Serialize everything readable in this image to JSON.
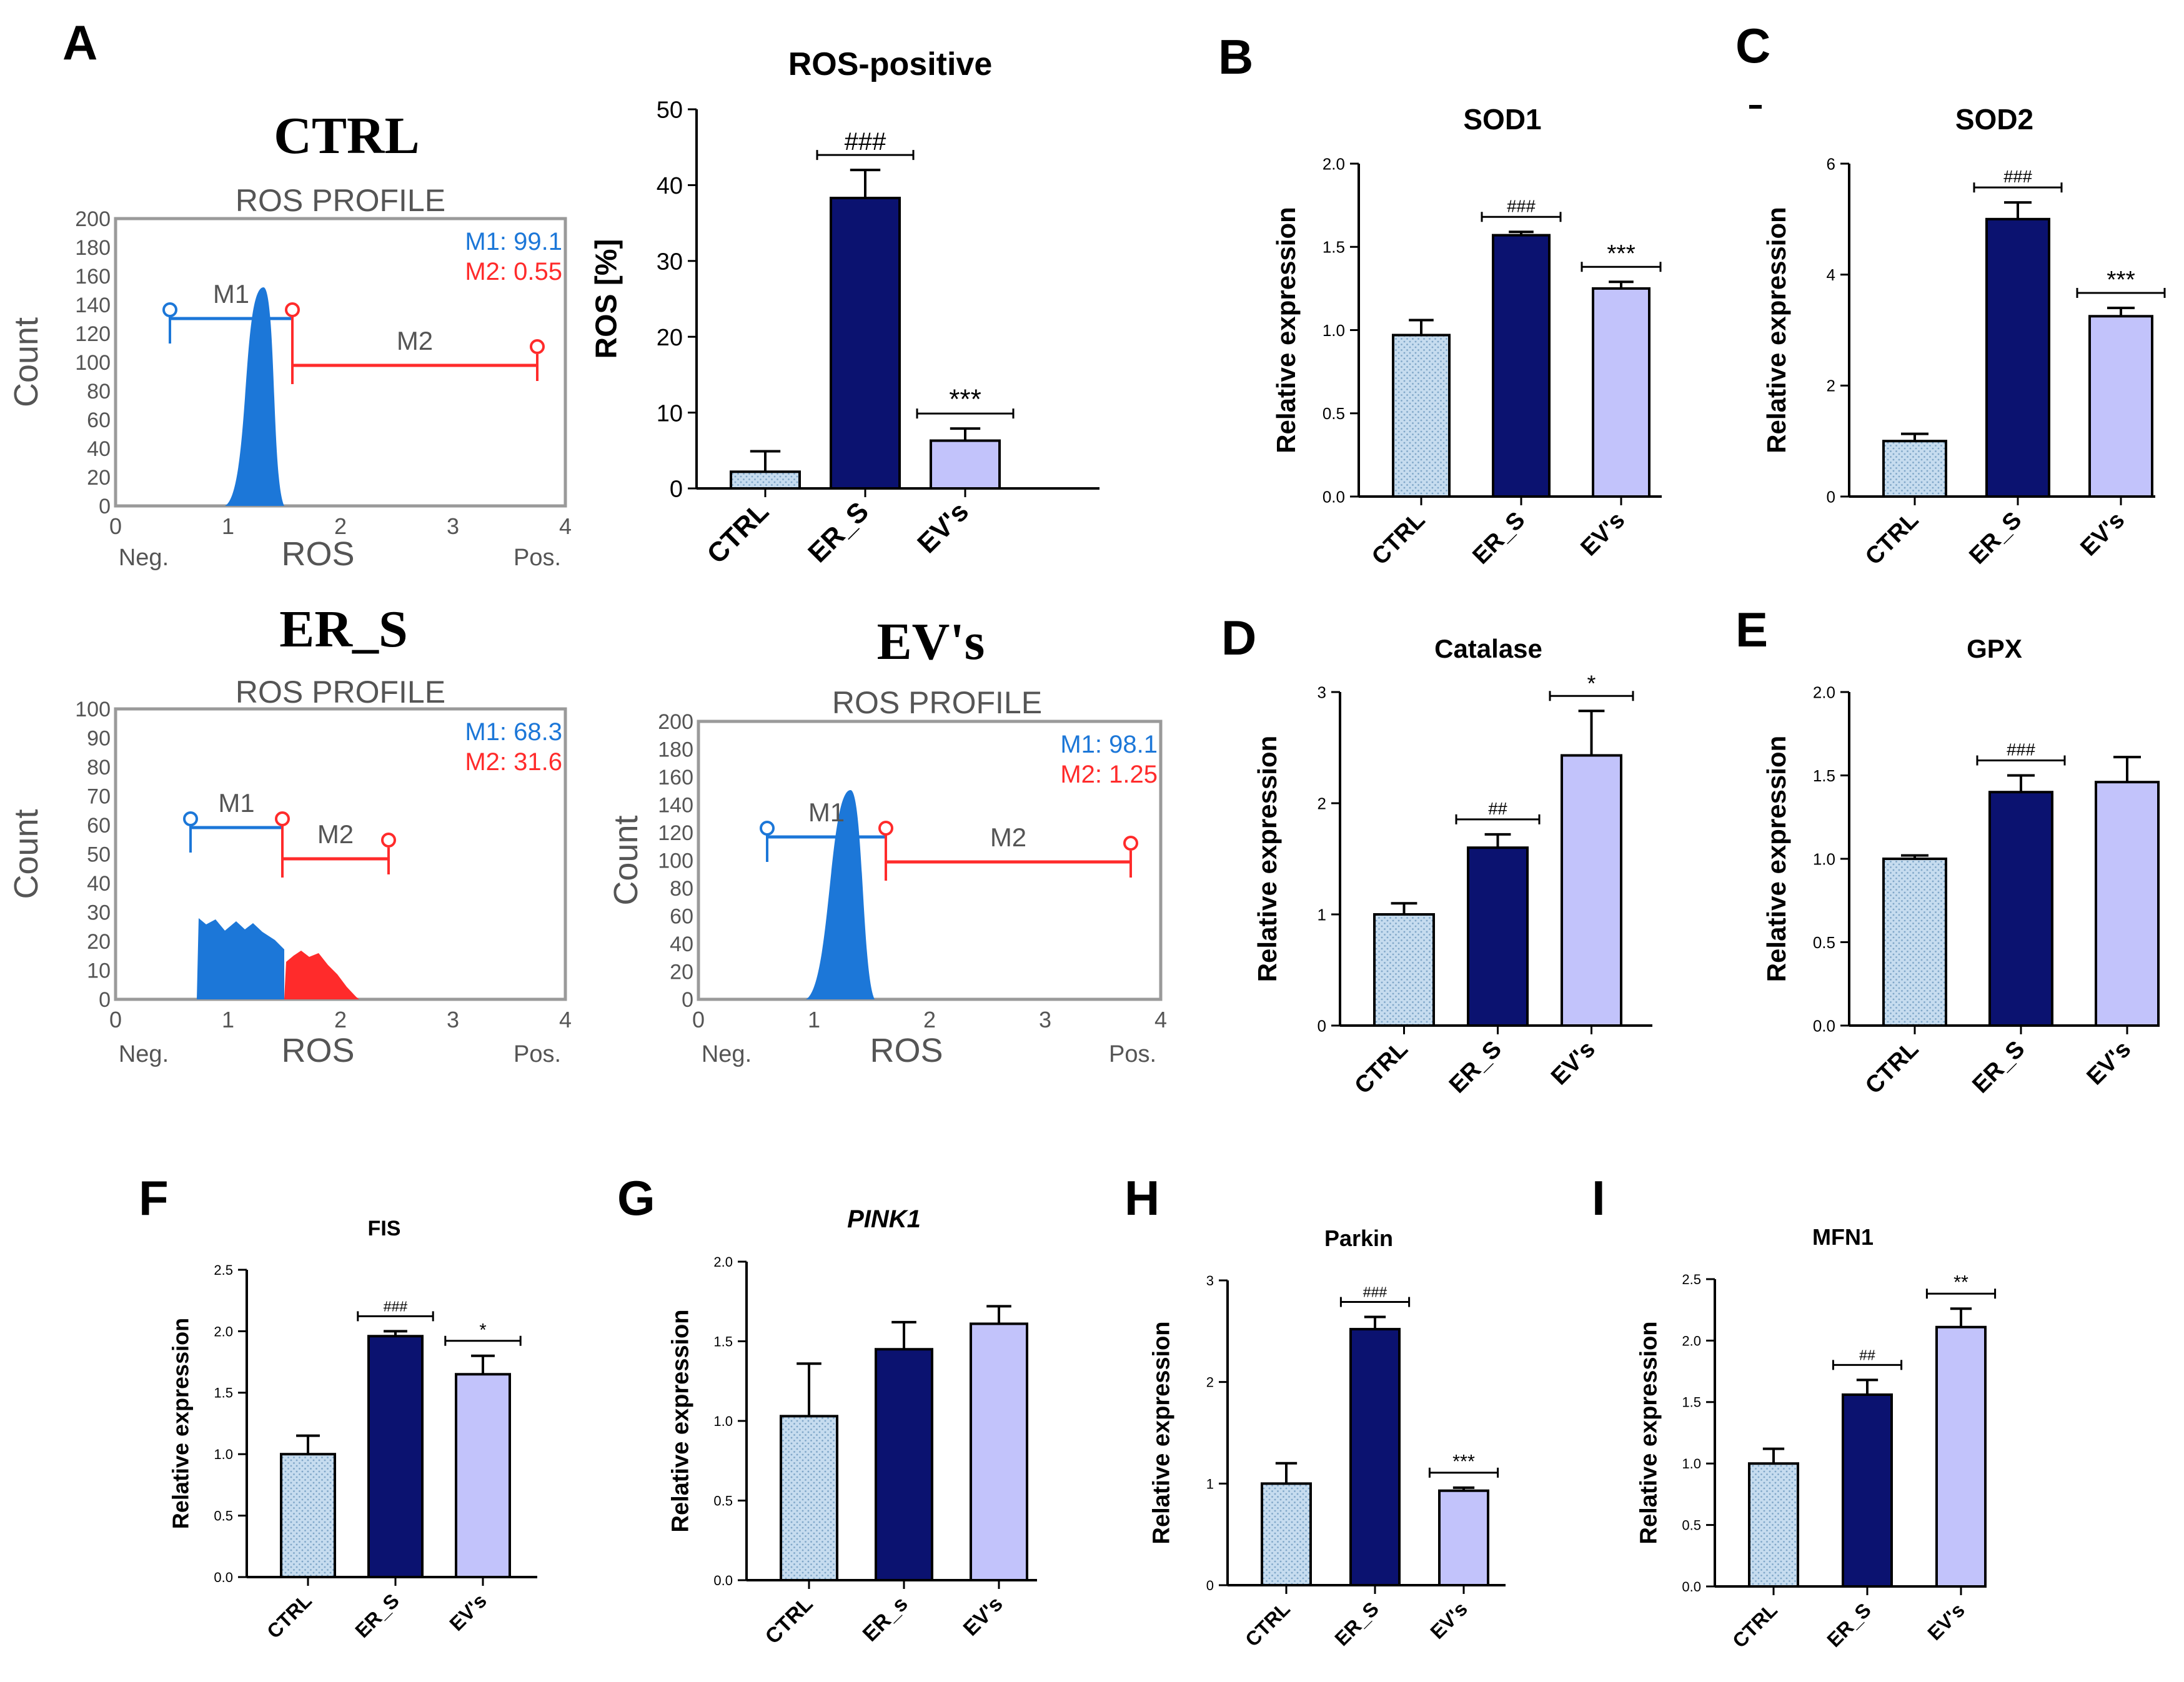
{
  "colors": {
    "ctrl": "#c6dcef",
    "ctrl_dot": "#7fa6c8",
    "er": "#0b1270",
    "ev": "#c2c3fb",
    "blue": "#1c77d8",
    "red": "#ff2b2b",
    "axis": "#000000",
    "frame": "#9a9a9a",
    "gray": "#555555"
  },
  "flow": {
    "xticks": [
      "0",
      "1",
      "2",
      "3",
      "4"
    ],
    "xlabel": "ROS",
    "neg": "Neg.",
    "pos": "Pos.",
    "ylabel": "Count",
    "subtitle": "ROS PROFILE",
    "m1": "M1",
    "m2": "M2",
    "panels": [
      {
        "title": "CTRL",
        "yticks": [
          "0",
          "20",
          "40",
          "60",
          "80",
          "100",
          "120",
          "140",
          "160",
          "180",
          "200"
        ],
        "m1_text": "M1: 99.1",
        "m2_text": "M2: 0.55"
      },
      {
        "title": "ER_S",
        "yticks": [
          "0",
          "10",
          "20",
          "30",
          "40",
          "50",
          "60",
          "70",
          "80",
          "90",
          "100"
        ],
        "m1_text": "M1: 68.3",
        "m2_text": "M2: 31.6"
      },
      {
        "title": "EV's",
        "yticks": [
          "0",
          "20",
          "40",
          "60",
          "80",
          "100",
          "120",
          "140",
          "160",
          "180",
          "200"
        ],
        "m1_text": "M1: 98.1",
        "m2_text": "M2: 1.25"
      }
    ]
  },
  "chart_data": [
    {
      "id": "ros",
      "panel": "A",
      "type": "bar",
      "title": "ROS-positive",
      "ylabel": "ROS [%]",
      "categories": [
        "CTRL",
        "ER_S",
        "EV's"
      ],
      "values": [
        2.2,
        38.3,
        6.3
      ],
      "errors": [
        2.7,
        3.7,
        1.6
      ],
      "ylim": [
        0,
        50
      ],
      "yticks": [
        "0",
        "10",
        "20",
        "30",
        "40",
        "50"
      ],
      "annotations": [
        {
          "bar": 1,
          "text": "###"
        },
        {
          "bar": 2,
          "text": "***"
        }
      ]
    },
    {
      "id": "sod1",
      "panel": "B",
      "type": "bar",
      "title": "SOD1",
      "ylabel": "Relative expression",
      "categories": [
        "CTRL",
        "ER_S",
        "EV's"
      ],
      "values": [
        0.97,
        1.57,
        1.25
      ],
      "errors": [
        0.09,
        0.02,
        0.04
      ],
      "ylim": [
        0,
        2.0
      ],
      "yticks": [
        "0.0",
        "0.5",
        "1.0",
        "1.5",
        "2.0"
      ],
      "annotations": [
        {
          "bar": 1,
          "text": "###"
        },
        {
          "bar": 2,
          "text": "***"
        }
      ]
    },
    {
      "id": "sod2",
      "panel": "C",
      "type": "bar",
      "title": "SOD2",
      "ylabel": "Relative expression",
      "categories": [
        "CTRL",
        "ER_S",
        "EV's"
      ],
      "values": [
        1.0,
        5.0,
        3.25
      ],
      "errors": [
        0.13,
        0.3,
        0.15
      ],
      "ylim": [
        0,
        6
      ],
      "yticks": [
        "0",
        "2",
        "4",
        "6"
      ],
      "annotations": [
        {
          "bar": 1,
          "text": "###"
        },
        {
          "bar": 2,
          "text": "***"
        }
      ]
    },
    {
      "id": "cat",
      "panel": "D",
      "type": "bar",
      "title": "Catalase",
      "ylabel": "Relative expression",
      "categories": [
        "CTRL",
        "ER_S",
        "EV's"
      ],
      "values": [
        1.0,
        1.6,
        2.43
      ],
      "errors": [
        0.1,
        0.12,
        0.4
      ],
      "ylim": [
        0,
        3
      ],
      "yticks": [
        "0",
        "1",
        "2",
        "3"
      ],
      "annotations": [
        {
          "bar": 1,
          "text": "##"
        },
        {
          "bar": 2,
          "text": "*"
        }
      ]
    },
    {
      "id": "gpx",
      "panel": "E",
      "type": "bar",
      "title": "GPX",
      "ylabel": "Relative expression",
      "categories": [
        "CTRL",
        "ER_S",
        "EV's"
      ],
      "values": [
        1.0,
        1.4,
        1.46
      ],
      "errors": [
        0.02,
        0.1,
        0.15
      ],
      "ylim": [
        0,
        2.0
      ],
      "yticks": [
        "0.0",
        "0.5",
        "1.0",
        "1.5",
        "2.0"
      ],
      "annotations": [
        {
          "bar": 1,
          "text": "###"
        }
      ]
    },
    {
      "id": "fis",
      "panel": "F",
      "type": "bar",
      "title": "FIS",
      "ylabel": "Relative expression",
      "categories": [
        "CTRL",
        "ER_S",
        "EV's"
      ],
      "values": [
        1.0,
        1.96,
        1.65
      ],
      "errors": [
        0.15,
        0.04,
        0.15
      ],
      "ylim": [
        0,
        2.5
      ],
      "yticks": [
        "0.0",
        "0.5",
        "1.0",
        "1.5",
        "2.0",
        "2.5"
      ],
      "annotations": [
        {
          "bar": 1,
          "text": "###"
        },
        {
          "bar": 2,
          "text": "*"
        }
      ]
    },
    {
      "id": "pink",
      "panel": "G",
      "type": "bar",
      "title": "PINK1",
      "title_italic": true,
      "ylabel": "Relative expression",
      "categories": [
        "CTRL",
        "ER_s",
        "EV's"
      ],
      "values": [
        1.03,
        1.45,
        1.61
      ],
      "errors": [
        0.33,
        0.17,
        0.11
      ],
      "ylim": [
        0,
        2.0
      ],
      "yticks": [
        "0.0",
        "0.5",
        "1.0",
        "1.5",
        "2.0"
      ],
      "annotations": []
    },
    {
      "id": "parkin",
      "panel": "H",
      "type": "bar",
      "title": "Parkin",
      "ylabel": "Relative expression",
      "categories": [
        "CTRL",
        "ER_S",
        "EV's"
      ],
      "values": [
        1.0,
        2.52,
        0.93
      ],
      "errors": [
        0.2,
        0.12,
        0.03
      ],
      "ylim": [
        0,
        3
      ],
      "yticks": [
        "0",
        "1",
        "2",
        "3"
      ],
      "annotations": [
        {
          "bar": 1,
          "text": "###"
        },
        {
          "bar": 2,
          "text": "***"
        }
      ]
    },
    {
      "id": "mfn1",
      "panel": "I",
      "type": "bar",
      "title": "MFN1",
      "ylabel": "Relative expression",
      "categories": [
        "CTRL",
        "ER_S",
        "EV's"
      ],
      "values": [
        1.0,
        1.56,
        2.11
      ],
      "errors": [
        0.12,
        0.12,
        0.15
      ],
      "ylim": [
        0,
        2.5
      ],
      "yticks": [
        "0.0",
        "0.5",
        "1.0",
        "1.5",
        "2.0",
        "2.5"
      ],
      "annotations": [
        {
          "bar": 1,
          "text": "##"
        },
        {
          "bar": 2,
          "text": "**"
        }
      ]
    }
  ]
}
